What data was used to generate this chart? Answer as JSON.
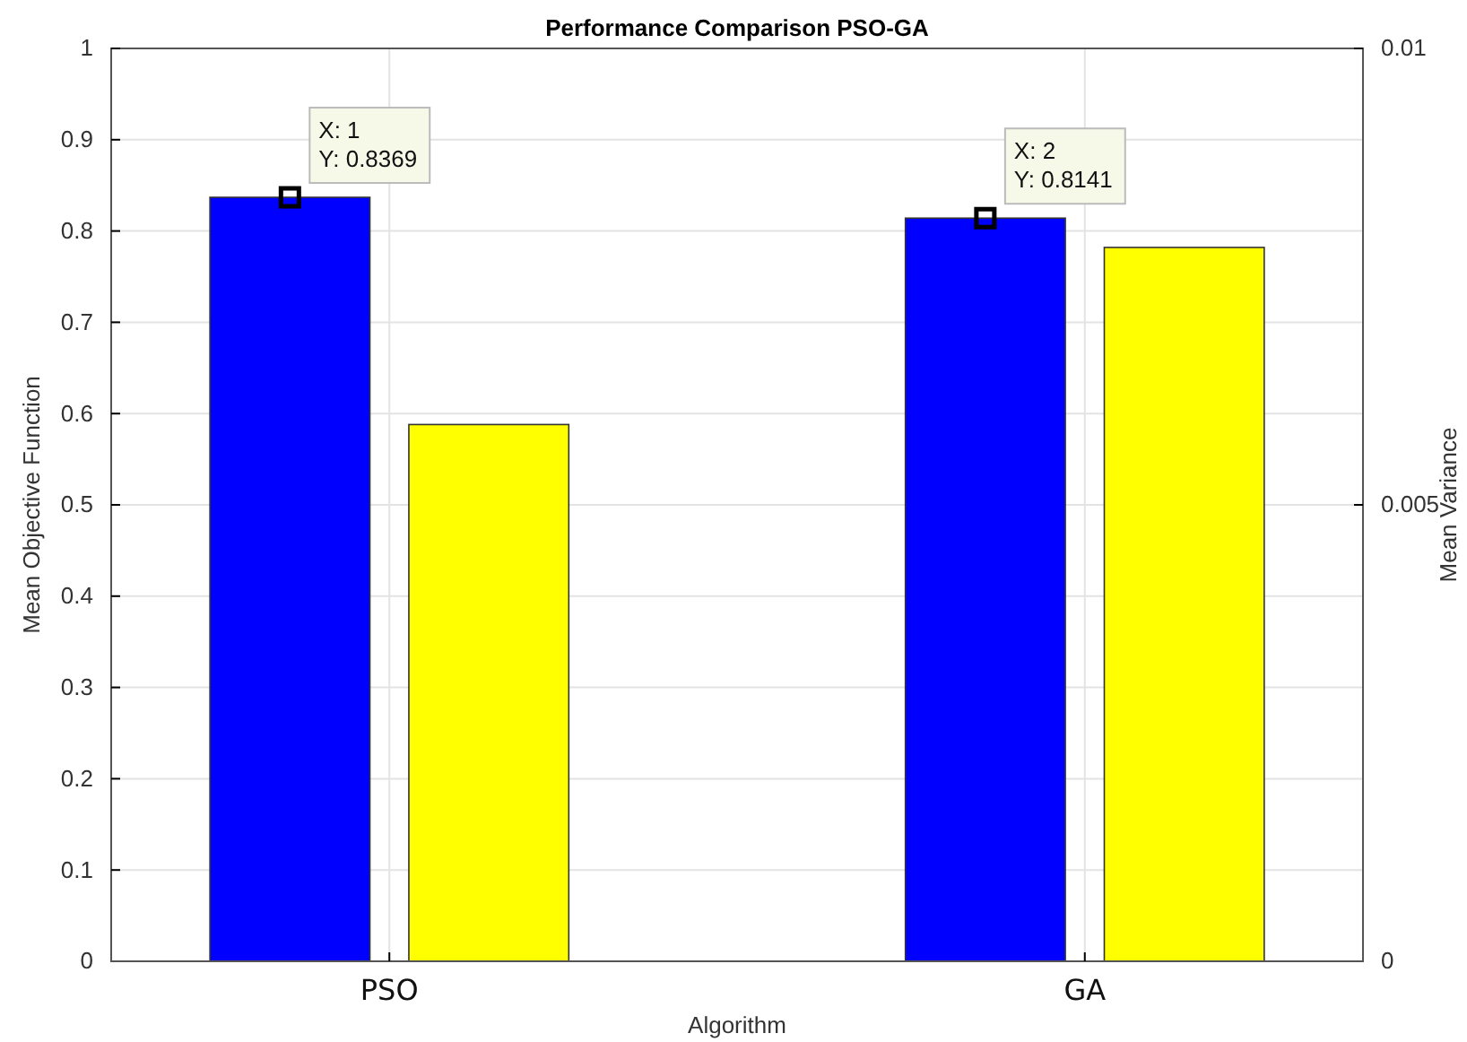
{
  "chart_data": {
    "type": "bar",
    "title": "Performance Comparison PSO-GA",
    "xlabel": "Algorithm",
    "ylabel": "Mean Objective Function",
    "y2label": "Mean Variance",
    "categories": [
      "PSO",
      "GA"
    ],
    "series": [
      {
        "color": "#0000ff",
        "values": [
          0.8369,
          0.8141
        ]
      },
      {
        "color": "#ffff00",
        "values": [
          0.00588,
          0.00782
        ],
        "axis": "y2"
      }
    ],
    "ylim": [
      0,
      1
    ],
    "yticks": [
      0,
      0.1,
      0.2,
      0.3,
      0.4,
      0.5,
      0.6,
      0.7,
      0.8,
      0.9,
      1
    ],
    "y2lim": [
      0,
      0.01
    ],
    "y2ticks": [
      0,
      0.005,
      0.01
    ],
    "grid": true,
    "annotations": [
      "X: 1\nY: 0.8369",
      "X: 2\nY: 0.8141"
    ]
  }
}
